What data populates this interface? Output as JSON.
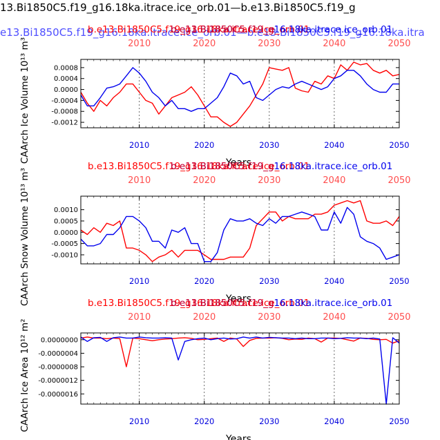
{
  "header": {
    "title_line1": "13.Bi1850C5.f19_g16.18ka.itrace.ice_orb.01—b.e13.Bi1850C5.f19_g",
    "title_line2": "e13.Bi1850C5.f19_g16.18ka.itrace.ice_orb.01—b.e13.Bi1850C5.f19_g16.18ka.itra",
    "line1_color": "#000000",
    "line2_color": "#4f4fff"
  },
  "colors": {
    "red": "#ff0000",
    "blue": "#0000ee",
    "red_tick": "#ff4d4d",
    "blue_tick": "#0000dd"
  },
  "chart_data": [
    {
      "type": "line",
      "title_red": "b.e13.Bi1850C5.f19_g16.18ka.itrace.ice_orb.01",
      "title_blue": "b.e13.Bi1850C5.f19_g16.18ka.itrace.ice_orb.01",
      "title_overlap": "b.e13.Bi1850C5.f19_g",
      "xlabel": "Years",
      "ylabel": "CAArch Ice Volume 10¹³ m³",
      "xlim": [
        2001,
        2050
      ],
      "ylim": [
        -0.0014,
        0.0011
      ],
      "yticks": [
        0.0008,
        0.0004,
        0.0,
        -0.0004,
        -0.0008,
        -0.0012
      ],
      "ytick_labels": [
        "0.0008",
        "0.0004",
        "0.0000",
        "-0.0004",
        "-0.0008",
        "-0.0012"
      ],
      "xticks": [
        2010,
        2020,
        2030,
        2040,
        2050
      ],
      "xtick_labels": [
        "2010",
        "2020",
        "2030",
        "2040",
        "2050"
      ],
      "x": [
        2001,
        2002,
        2003,
        2004,
        2005,
        2006,
        2007,
        2008,
        2009,
        2010,
        2011,
        2012,
        2013,
        2014,
        2015,
        2016,
        2017,
        2018,
        2019,
        2020,
        2021,
        2022,
        2023,
        2024,
        2025,
        2026,
        2027,
        2028,
        2029,
        2030,
        2031,
        2032,
        2033,
        2034,
        2035,
        2036,
        2037,
        2038,
        2039,
        2040,
        2041,
        2042,
        2043,
        2044,
        2045,
        2046,
        2047,
        2048,
        2049,
        2050
      ],
      "series": [
        {
          "color": "red",
          "values": [
            -0.0001,
            -0.0005,
            -0.0008,
            -0.0004,
            -0.0006,
            -0.0003,
            -0.0001,
            0.0002,
            0.0002,
            -0.0001,
            -0.0004,
            -0.0005,
            -0.0009,
            -0.0006,
            -0.0003,
            -0.0002,
            -0.0001,
            0.0001,
            -0.0002,
            -0.0006,
            -0.001,
            -0.001,
            -0.0012,
            -0.00135,
            -0.0012,
            -0.0009,
            -0.0006,
            -0.0002,
            0.0002,
            0.0008,
            0.00075,
            0.0007,
            0.0008,
            5e-05,
            -5e-05,
            -0.0001,
            0.0003,
            0.0002,
            0.0005,
            0.0004,
            0.0009,
            0.0007,
            0.001,
            0.0009,
            0.00095,
            0.0007,
            0.0006,
            0.0007,
            0.0005,
            0.00055
          ]
        },
        {
          "color": "blue",
          "values": [
            -0.0002,
            -0.0006,
            -0.0006,
            -0.0003,
            5e-05,
            0.0001,
            0.0002,
            0.0005,
            0.0008,
            0.0006,
            0.0003,
            -0.0001,
            -0.0003,
            -0.0006,
            -0.0004,
            -0.0007,
            -0.0007,
            -0.0008,
            -0.0007,
            -0.0007,
            -0.0005,
            -0.0003,
            0.0001,
            0.0006,
            0.0005,
            0.0002,
            0.0003,
            -0.0003,
            -0.0004,
            -0.0002,
            0.0,
            0.0001,
            5e-05,
            0.0002,
            0.0003,
            0.0002,
            0.0001,
            0.0,
            0.0001,
            0.0004,
            0.0005,
            0.0007,
            0.0007,
            0.0005,
            0.0002,
            0.0,
            -0.0001,
            -0.0001,
            0.0002,
            0.0002
          ]
        }
      ]
    },
    {
      "type": "line",
      "title_red": "b.e13.Bi1850C5.f19_g16.18ka.itrace.ice_orb.01",
      "title_blue": "b.e13.Bi1850C5.f19_g16.18ka.itrace.ice_orb.01",
      "title_overlap": "b.e13.Bi1850C5.f19_g",
      "xlabel": "Years",
      "ylabel": "CAArch Snow Volume 10¹³ m³",
      "xlim": [
        2001,
        2050
      ],
      "ylim": [
        -0.0014,
        0.0016
      ],
      "yticks": [
        0.001,
        0.0005,
        0.0,
        -0.0005,
        -0.001
      ],
      "ytick_labels": [
        "0.0010",
        "0.0005",
        "0.0000",
        "-0.0005",
        "-0.0010"
      ],
      "xticks": [
        2010,
        2020,
        2030,
        2040,
        2050
      ],
      "xtick_labels": [
        "2010",
        "2020",
        "2030",
        "2040",
        "2050"
      ],
      "x": [
        2001,
        2002,
        2003,
        2004,
        2005,
        2006,
        2007,
        2008,
        2009,
        2010,
        2011,
        2012,
        2013,
        2014,
        2015,
        2016,
        2017,
        2018,
        2019,
        2020,
        2021,
        2022,
        2023,
        2024,
        2025,
        2026,
        2027,
        2028,
        2029,
        2030,
        2031,
        2032,
        2033,
        2034,
        2035,
        2036,
        2037,
        2038,
        2039,
        2040,
        2041,
        2042,
        2043,
        2044,
        2045,
        2046,
        2047,
        2048,
        2049,
        2050
      ],
      "series": [
        {
          "color": "red",
          "values": [
            0.0001,
            -0.0001,
            0.0002,
            0.0,
            0.0004,
            0.0003,
            0.0005,
            -0.0007,
            -0.0007,
            -0.0008,
            -0.001,
            -0.0013,
            -0.0011,
            -0.001,
            -0.0008,
            -0.0011,
            -0.0008,
            -0.0008,
            -0.0008,
            -0.001,
            -0.0012,
            -0.0012,
            -0.0012,
            -0.0011,
            -0.0011,
            -0.0011,
            -0.0007,
            0.0003,
            0.0006,
            0.0009,
            0.0009,
            0.0005,
            0.0007,
            0.0006,
            0.0006,
            0.0006,
            0.0008,
            0.0008,
            0.0009,
            0.0012,
            0.0013,
            0.0014,
            0.0013,
            0.0014,
            0.0005,
            0.0004,
            0.0004,
            0.0005,
            0.0003,
            0.0007
          ]
        },
        {
          "color": "blue",
          "values": [
            -0.0003,
            -0.0006,
            -0.0006,
            -0.0005,
            -0.0001,
            -0.0001,
            0.0002,
            0.0007,
            0.0007,
            0.0005,
            0.0002,
            -0.0004,
            -0.0004,
            -0.0007,
            0.0001,
            0.0,
            0.0002,
            -0.0005,
            -0.0005,
            -0.0013,
            -0.0013,
            -0.0009,
            0.0001,
            0.0006,
            0.0005,
            0.0005,
            0.0006,
            0.0004,
            0.0003,
            0.0006,
            0.0004,
            0.0007,
            0.0007,
            0.0008,
            0.0009,
            0.0008,
            0.0007,
            0.0001,
            0.0001,
            0.0009,
            0.0004,
            0.0011,
            0.0008,
            -0.0002,
            -0.0004,
            -0.0005,
            -0.0007,
            -0.0012,
            -0.0011,
            -0.001
          ]
        }
      ]
    },
    {
      "type": "line",
      "title_red": "b.e13.Bi1850C5.f19_g16.18ka.itrace.ice_orb.01",
      "title_blue": "b.e13.Bi1850C5.f19_g16.18ka.itrace.ice_orb.01",
      "title_overlap": "b.e13.Bi1850C5.f19_g",
      "xlabel": "Years",
      "ylabel": "CAArch Ice Area 10¹² m²",
      "xlim": [
        2001,
        2050
      ],
      "ylim": [
        -1.9e-06,
        2e-07
      ],
      "yticks": [
        0.0,
        -4e-07,
        -8e-07,
        -1.2e-06,
        -1.6e-06
      ],
      "ytick_labels": [
        "0.0000000",
        "-0.0000004",
        "-0.0000008",
        "-0.0000012",
        "-0.0000016"
      ],
      "xticks": [
        2010,
        2020,
        2030,
        2040,
        2050
      ],
      "xtick_labels": [
        "2010",
        "2020",
        "2030",
        "2040",
        "2050"
      ],
      "x": [
        2001,
        2002,
        2003,
        2004,
        2005,
        2006,
        2007,
        2008,
        2009,
        2010,
        2011,
        2012,
        2013,
        2014,
        2015,
        2016,
        2017,
        2018,
        2019,
        2020,
        2021,
        2022,
        2023,
        2024,
        2025,
        2026,
        2027,
        2028,
        2029,
        2030,
        2031,
        2032,
        2033,
        2034,
        2035,
        2036,
        2037,
        2038,
        2039,
        2040,
        2041,
        2042,
        2043,
        2044,
        2045,
        2046,
        2047,
        2048,
        2049,
        2050
      ],
      "series": [
        {
          "color": "red",
          "values": [
            5e-08,
            8e-08,
            5e-08,
            5e-08,
            3e-08,
            5e-08,
            3e-08,
            -8e-07,
            5e-08,
            3e-08,
            0.0,
            -3e-08,
            0.0,
            2e-08,
            3e-08,
            5e-08,
            6e-08,
            4e-08,
            0.0,
            1e-08,
            3e-08,
            5e-08,
            -5e-08,
            5e-08,
            2e-08,
            -2e-07,
            -2e-08,
            4e-08,
            5e-08,
            5e-08,
            6e-08,
            4e-08,
            0.0,
            2e-08,
            1e-08,
            5e-08,
            3e-08,
            -7e-08,
            5e-08,
            5e-08,
            4e-08,
            0.0,
            -4e-08,
            5e-08,
            4e-08,
            1e-08,
            0.0,
            1e-08,
            -1e-07,
            -3e-08
          ]
        },
        {
          "color": "blue",
          "values": [
            8e-08,
            -5e-08,
            6e-08,
            7e-08,
            -5e-08,
            6e-08,
            8e-08,
            5e-08,
            5e-08,
            8e-08,
            6e-08,
            5e-08,
            5e-08,
            6e-08,
            5e-08,
            -6e-07,
            -5e-08,
            0.0,
            3e-08,
            5e-08,
            0.0,
            3e-08,
            5e-08,
            2e-08,
            3e-08,
            8e-08,
            5e-08,
            8e-08,
            5e-08,
            7e-08,
            6e-08,
            5e-08,
            5e-08,
            3e-08,
            5e-08,
            3e-08,
            3e-08,
            5e-08,
            5e-08,
            3e-08,
            4e-08,
            6e-08,
            5e-08,
            5e-08,
            3e-08,
            5e-08,
            2e-08,
            -1.9e-06,
            6e-08,
            -1e-07
          ]
        }
      ]
    }
  ]
}
